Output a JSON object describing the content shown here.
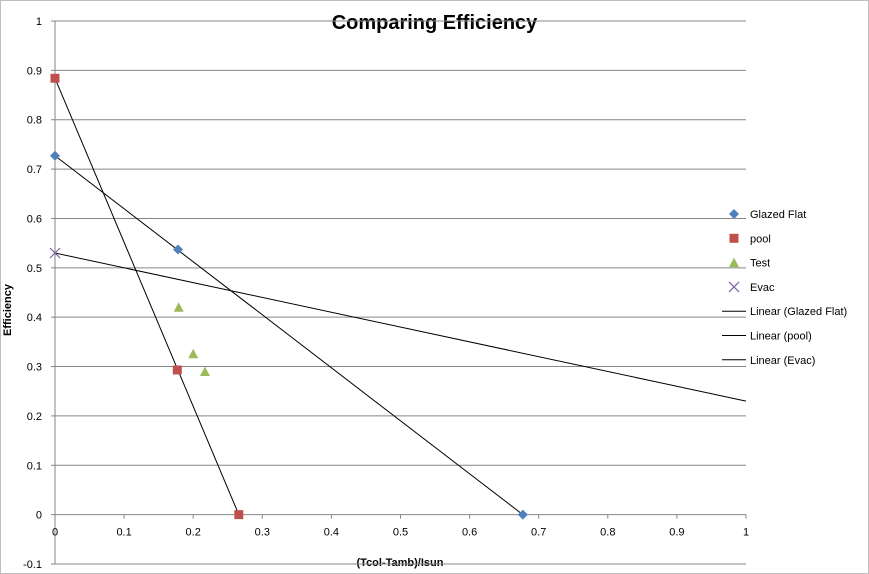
{
  "chart_data": {
    "type": "scatter",
    "title": "Comparing Efficiency",
    "xlabel": "(Tcol-Tamb)/Isun",
    "ylabel": "Efficiency",
    "xlim": [
      0,
      1
    ],
    "ylim": [
      -0.1,
      1
    ],
    "x_ticks": [
      "0",
      "0.1",
      "0.2",
      "0.3",
      "0.4",
      "0.5",
      "0.6",
      "0.7",
      "0.8",
      "0.9",
      "1"
    ],
    "y_ticks": [
      "-0.1",
      "0",
      "0.1",
      "0.2",
      "0.3",
      "0.4",
      "0.5",
      "0.6",
      "0.7",
      "0.8",
      "0.9",
      "1"
    ],
    "grid": "horizontal",
    "legend_position": "right",
    "series": [
      {
        "name": "Glazed Flat",
        "marker": "diamond",
        "color": "#4f81bd",
        "points": [
          [
            0,
            0.727
          ],
          [
            0.178,
            0.537
          ],
          [
            0.677,
            0
          ]
        ]
      },
      {
        "name": "pool",
        "marker": "square",
        "color": "#c0504d",
        "points": [
          [
            0,
            0.884
          ],
          [
            0.177,
            0.293
          ],
          [
            0.266,
            0
          ]
        ]
      },
      {
        "name": "Test",
        "marker": "triangle",
        "color": "#9bbb59",
        "points": [
          [
            0.179,
            0.42
          ],
          [
            0.2,
            0.326
          ],
          [
            0.217,
            0.29
          ]
        ]
      },
      {
        "name": "Evac",
        "marker": "x",
        "color": "#8064a2",
        "points": [
          [
            0,
            0.53
          ]
        ]
      }
    ],
    "trendlines": [
      {
        "name": "Linear (Glazed Flat)",
        "color": "#000000",
        "from": [
          0,
          0.727
        ],
        "to": [
          0.677,
          0
        ]
      },
      {
        "name": "Linear (pool)",
        "color": "#000000",
        "from": [
          0,
          0.884
        ],
        "to": [
          0.266,
          0
        ]
      },
      {
        "name": "Linear (Evac)",
        "color": "#000000",
        "from": [
          0,
          0.53
        ],
        "to": [
          1,
          0.23
        ]
      }
    ]
  }
}
